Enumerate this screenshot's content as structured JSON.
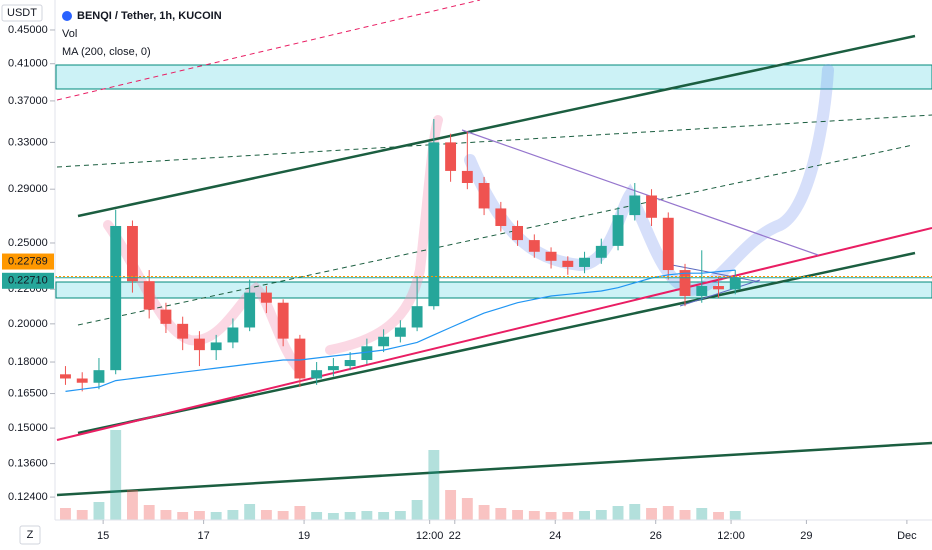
{
  "chart_data": {
    "type": "candlestick",
    "title": "BENQI / Tether, 1h, KUCOIN",
    "currency": "USDT",
    "zoom_button": "Z",
    "volume_name": "Vol",
    "log_scale": true,
    "grid": false,
    "up_color": "#26a69a",
    "down_color": "#ef5350",
    "xlim": [
      -23,
      396
    ],
    "ylim": [
      0.1164,
      0.4888
    ],
    "xticks": [
      {
        "value": 0,
        "label": "15"
      },
      {
        "value": 48,
        "label": "17"
      },
      {
        "value": 96,
        "label": "19"
      },
      {
        "value": 156,
        "label": "12:00"
      },
      {
        "value": 168,
        "label": "22"
      },
      {
        "value": 216,
        "label": "24"
      },
      {
        "value": 264,
        "label": "26"
      },
      {
        "value": 300,
        "label": "12:00"
      },
      {
        "value": 336,
        "label": "29"
      },
      {
        "value": 384,
        "label": "Dec"
      }
    ],
    "yticks": [
      {
        "value": 0.45,
        "label": "0.45000"
      },
      {
        "value": 0.41,
        "label": "0.41000"
      },
      {
        "value": 0.37,
        "label": "0.37000"
      },
      {
        "value": 0.33,
        "label": "0.33000"
      },
      {
        "value": 0.29,
        "label": "0.29000"
      },
      {
        "value": 0.25,
        "label": "0.25000"
      },
      {
        "value": 0.22,
        "label": "0.22000"
      },
      {
        "value": 0.2,
        "label": "0.20000"
      },
      {
        "value": 0.18,
        "label": "0.18000"
      },
      {
        "value": 0.165,
        "label": "0.16500"
      },
      {
        "value": 0.15,
        "label": "0.15000"
      },
      {
        "value": 0.136,
        "label": "0.13600"
      },
      {
        "value": 0.124,
        "label": "0.12400"
      }
    ],
    "x": [
      -18,
      -10,
      -2,
      6,
      14,
      22,
      30,
      38,
      46,
      54,
      62,
      70,
      78,
      86,
      94,
      102,
      110,
      118,
      126,
      134,
      142,
      150,
      158,
      166,
      174,
      182,
      190,
      198,
      206,
      214,
      222,
      230,
      238,
      246,
      254,
      262,
      270,
      278,
      286,
      294,
      302
    ],
    "open": [
      0.174,
      0.172,
      0.17,
      0.176,
      0.262,
      0.225,
      0.208,
      0.2,
      0.192,
      0.186,
      0.19,
      0.198,
      0.218,
      0.212,
      0.192,
      0.172,
      0.176,
      0.178,
      0.181,
      0.188,
      0.193,
      0.198,
      0.21,
      0.33,
      0.305,
      0.295,
      0.275,
      0.262,
      0.252,
      0.244,
      0.238,
      0.234,
      0.24,
      0.248,
      0.27,
      0.285,
      0.268,
      0.232,
      0.216,
      0.222,
      0.22
    ],
    "high": [
      0.178,
      0.175,
      0.182,
      0.274,
      0.266,
      0.232,
      0.212,
      0.204,
      0.196,
      0.194,
      0.203,
      0.226,
      0.222,
      0.214,
      0.194,
      0.18,
      0.182,
      0.185,
      0.192,
      0.197,
      0.202,
      0.228,
      0.352,
      0.338,
      0.34,
      0.3,
      0.28,
      0.266,
      0.256,
      0.247,
      0.241,
      0.244,
      0.253,
      0.276,
      0.295,
      0.29,
      0.272,
      0.236,
      0.245,
      0.228,
      0.232
    ],
    "low": [
      0.169,
      0.166,
      0.167,
      0.174,
      0.218,
      0.203,
      0.195,
      0.186,
      0.178,
      0.181,
      0.187,
      0.196,
      0.206,
      0.188,
      0.168,
      0.169,
      0.173,
      0.176,
      0.179,
      0.185,
      0.19,
      0.196,
      0.208,
      0.296,
      0.29,
      0.27,
      0.258,
      0.248,
      0.24,
      0.233,
      0.229,
      0.23,
      0.236,
      0.245,
      0.266,
      0.262,
      0.226,
      0.21,
      0.212,
      0.215,
      0.217
    ],
    "close": [
      0.172,
      0.17,
      0.176,
      0.262,
      0.225,
      0.208,
      0.2,
      0.192,
      0.186,
      0.19,
      0.198,
      0.218,
      0.212,
      0.192,
      0.172,
      0.176,
      0.178,
      0.181,
      0.188,
      0.193,
      0.198,
      0.21,
      0.33,
      0.305,
      0.295,
      0.275,
      0.262,
      0.252,
      0.244,
      0.238,
      0.234,
      0.24,
      0.248,
      0.27,
      0.285,
      0.268,
      0.232,
      0.216,
      0.222,
      0.22,
      0.2271
    ],
    "volume": [
      12,
      10,
      18,
      90,
      30,
      15,
      10,
      8,
      9,
      8,
      10,
      16,
      10,
      9,
      14,
      8,
      7,
      8,
      9,
      8,
      9,
      20,
      70,
      30,
      22,
      15,
      12,
      10,
      9,
      8,
      8,
      9,
      10,
      14,
      16,
      12,
      14,
      10,
      12,
      8,
      9
    ],
    "series": [
      {
        "name": "MA (200, close, 0)",
        "color": "#2196f3",
        "values": [
          0.166,
          0.167,
          0.168,
          0.171,
          0.172,
          0.173,
          0.174,
          0.175,
          0.176,
          0.177,
          0.178,
          0.179,
          0.18,
          0.181,
          0.181,
          0.182,
          0.183,
          0.184,
          0.185,
          0.186,
          0.188,
          0.19,
          0.194,
          0.198,
          0.202,
          0.206,
          0.209,
          0.212,
          0.214,
          0.216,
          0.217,
          0.218,
          0.219,
          0.221,
          0.224,
          0.227,
          0.229,
          0.23,
          0.23,
          0.231,
          0.232
        ]
      }
    ],
    "markers": [
      {
        "value": 0.22789,
        "color": "#ff9800"
      },
      {
        "value": 0.2271,
        "label": "0.22710",
        "color": "#26a69a"
      }
    ]
  }
}
